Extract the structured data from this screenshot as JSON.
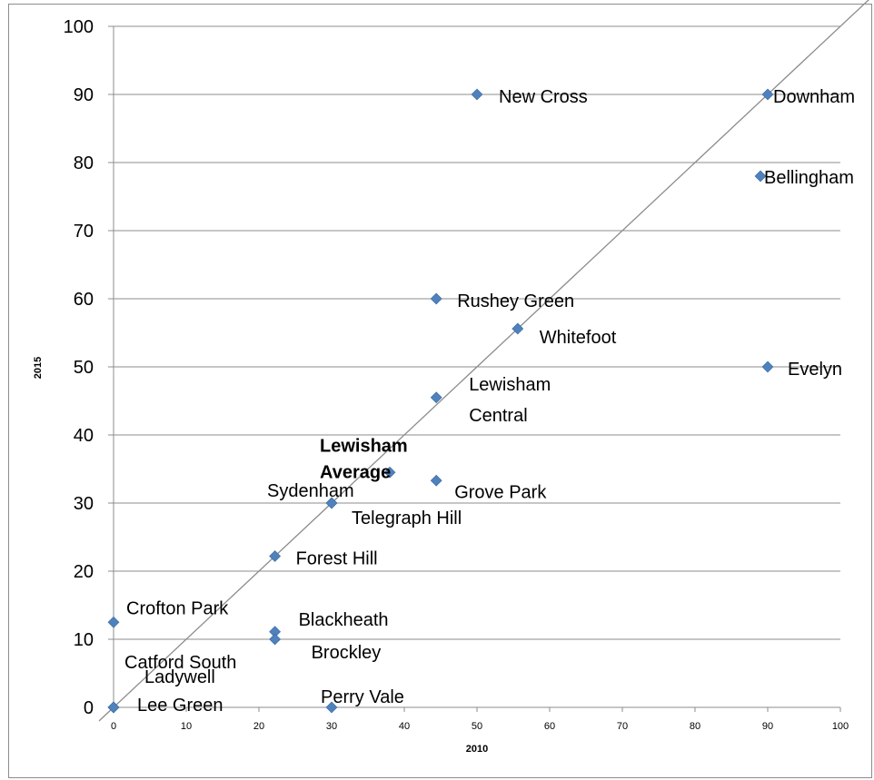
{
  "chart_data": {
    "type": "scatter",
    "xlabel": "2010",
    "ylabel": "2015",
    "xlim": [
      0,
      100
    ],
    "ylim": [
      0,
      100
    ],
    "x_ticks": [
      0,
      10,
      20,
      30,
      40,
      50,
      60,
      70,
      80,
      90,
      100
    ],
    "y_ticks": [
      0,
      10,
      20,
      30,
      40,
      50,
      60,
      70,
      80,
      90,
      100
    ],
    "grid": "horizontal",
    "legend": "none",
    "marker_color": "#4f81bd",
    "reference_line": {
      "from": [
        -2,
        -2
      ],
      "to": [
        104,
        104
      ],
      "color": "#8c8c8c"
    },
    "points": [
      {
        "name": "New Cross",
        "x": 50,
        "y": 90
      },
      {
        "name": "Downham",
        "x": 90,
        "y": 90
      },
      {
        "name": "Bellingham",
        "x": 89,
        "y": 78
      },
      {
        "name": "Rushey Green",
        "x": 44.4,
        "y": 60
      },
      {
        "name": "Whitefoot",
        "x": 55.6,
        "y": 55.6
      },
      {
        "name": "Evelyn",
        "x": 90,
        "y": 50
      },
      {
        "name": "Lewisham Central",
        "x": 44.4,
        "y": 45.5
      },
      {
        "name": "Lewisham Average",
        "x": 38,
        "y": 34.5
      },
      {
        "name": "Grove Park",
        "x": 44.4,
        "y": 33.3
      },
      {
        "name": "Sydenham",
        "x": 30,
        "y": 30
      },
      {
        "name": "Telegraph Hill",
        "x": 30,
        "y": 30
      },
      {
        "name": "Forest Hill",
        "x": 22.2,
        "y": 22.2
      },
      {
        "name": "Crofton Park",
        "x": 0,
        "y": 12.5
      },
      {
        "name": "Blackheath",
        "x": 22.2,
        "y": 11.1
      },
      {
        "name": "Brockley",
        "x": 22.2,
        "y": 10
      },
      {
        "name": "Catford South",
        "x": 0,
        "y": 0
      },
      {
        "name": "Ladywell",
        "x": 0,
        "y": 0
      },
      {
        "name": "Lee Green",
        "x": 0,
        "y": 0
      },
      {
        "name": "Perry Vale",
        "x": 30,
        "y": 0
      }
    ],
    "labels": [
      {
        "lines": [
          "New Cross"
        ],
        "point": "New Cross"
      },
      {
        "lines": [
          "Downham"
        ],
        "point": "Downham"
      },
      {
        "lines": [
          "Bellingham"
        ],
        "point": "Bellingham"
      },
      {
        "lines": [
          "Rushey Green"
        ],
        "point": "Rushey Green"
      },
      {
        "lines": [
          "Whitefoot"
        ],
        "point": "Whitefoot"
      },
      {
        "lines": [
          "Evelyn"
        ],
        "point": "Evelyn"
      },
      {
        "lines": [
          "Lewisham",
          "Central"
        ],
        "point": "Lewisham Central"
      },
      {
        "lines": [
          "Lewisham",
          "Average"
        ],
        "point": "Lewisham Average",
        "bold": true
      },
      {
        "lines": [
          "Grove Park"
        ],
        "point": "Grove Park"
      },
      {
        "lines": [
          "Sydenham"
        ],
        "point": "Sydenham"
      },
      {
        "lines": [
          "Telegraph Hill"
        ],
        "point": "Telegraph Hill"
      },
      {
        "lines": [
          "Forest Hill"
        ],
        "point": "Forest Hill"
      },
      {
        "lines": [
          "Crofton Park"
        ],
        "point": "Crofton Park"
      },
      {
        "lines": [
          "Blackheath"
        ],
        "point": "Blackheath"
      },
      {
        "lines": [
          "Brockley"
        ],
        "point": "Brockley"
      },
      {
        "lines": [
          "Catford South"
        ],
        "point": "Catford South"
      },
      {
        "lines": [
          "Ladywell"
        ],
        "point": "Ladywell"
      },
      {
        "lines": [
          "Lee Green"
        ],
        "point": "Lee Green"
      },
      {
        "lines": [
          "Perry Vale"
        ],
        "point": "Perry Vale"
      }
    ]
  }
}
